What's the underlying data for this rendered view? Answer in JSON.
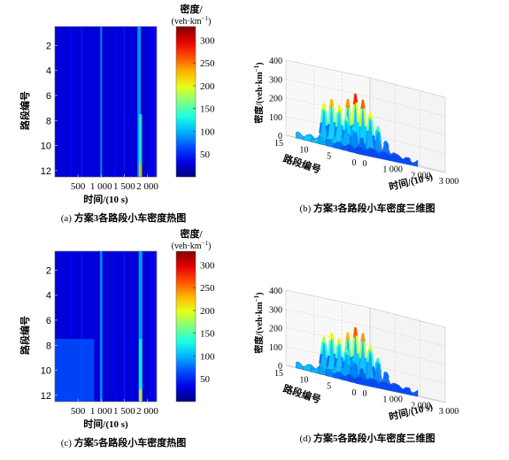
{
  "chart_data": [
    {
      "panel": "a",
      "type": "heatmap",
      "caption_prefix": "(a)",
      "caption": "方案3各路段小车密度热图",
      "xlabel": "时间/(10 s)",
      "ylabel": "路段编号",
      "x_ticks": [
        "500",
        "1 000",
        "1 500",
        "2 000"
      ],
      "x_tick_values": [
        500,
        1000,
        1500,
        2000
      ],
      "y_ticks": [
        "2",
        "4",
        "6",
        "8",
        "10",
        "12"
      ],
      "y_tick_values": [
        2,
        4,
        6,
        8,
        10,
        12
      ],
      "xlim": [
        0,
        2200
      ],
      "ylim": [
        0.5,
        12.5
      ],
      "colorbar": {
        "title": "密度/",
        "unit": "(veh·km",
        "unit_exp": "−1",
        "unit_close": ")",
        "ticks": [
          "300",
          "250",
          "200",
          "150",
          "100",
          "50"
        ],
        "tick_values": [
          300,
          250,
          200,
          150,
          100,
          50
        ],
        "range": [
          0,
          330
        ]
      },
      "bands": [
        {
          "x": 1000,
          "w": 40,
          "density": 85
        },
        {
          "x": 1820,
          "w": 70,
          "density": 95
        }
      ],
      "hot_cells": [
        {
          "x": 1850,
          "w": 70,
          "y_from": 7.5,
          "y_to": 11.5,
          "density": 140
        },
        {
          "x": 1850,
          "w": 70,
          "y_from": 11.5,
          "y_to": 12.5,
          "density": 220
        }
      ]
    },
    {
      "panel": "b",
      "type": "surface3d",
      "caption_prefix": "(b)",
      "caption": "方案3各路段小车密度三维图",
      "zlabel": "密度/(veh·km",
      "zlabel_exp": "−1",
      "zlabel_close": ")",
      "z_ticks": [
        "400",
        "300",
        "200",
        "100",
        "0"
      ],
      "z_tick_values": [
        400,
        300,
        200,
        100,
        0
      ],
      "ylabel": "路段编号",
      "y_ticks": [
        "15",
        "10",
        "5",
        "0"
      ],
      "y_tick_values": [
        15,
        10,
        5,
        0
      ],
      "xlabel": "时间/(10 s)",
      "x_ticks": [
        "0",
        "1 000",
        "2 000",
        "3 000"
      ],
      "x_tick_values": [
        0,
        1000,
        2000,
        3000
      ],
      "peaks": [
        {
          "x": 1000,
          "road": 11,
          "density": 220
        },
        {
          "x": 1850,
          "road": 11,
          "density": 280
        }
      ]
    },
    {
      "panel": "c",
      "type": "heatmap",
      "caption_prefix": "(c)",
      "caption": "方案5各路段小车密度热图",
      "xlabel": "时间/(10 s)",
      "ylabel": "路段编号",
      "x_ticks": [
        "500",
        "1 000",
        "1 500",
        "2 000"
      ],
      "x_tick_values": [
        500,
        1000,
        1500,
        2000
      ],
      "y_ticks": [
        "2",
        "4",
        "6",
        "8",
        "10",
        "12"
      ],
      "y_tick_values": [
        2,
        4,
        6,
        8,
        10,
        12
      ],
      "xlim": [
        0,
        2200
      ],
      "ylim": [
        0.5,
        12.5
      ],
      "colorbar": {
        "title": "密度/",
        "unit": "(veh·km",
        "unit_exp": "−1",
        "unit_close": ")",
        "ticks": [
          "300",
          "250",
          "200",
          "150",
          "100",
          "50"
        ],
        "tick_values": [
          300,
          250,
          200,
          150,
          100,
          50
        ],
        "range": [
          0,
          330
        ]
      },
      "bands": [
        {
          "x": 1000,
          "w": 50,
          "density": 90
        },
        {
          "x": 1850,
          "w": 80,
          "density": 95
        }
      ],
      "hot_cells": [
        {
          "x": 1850,
          "w": 70,
          "y_from": 7.5,
          "y_to": 11.5,
          "density": 130
        },
        {
          "x": 1850,
          "w": 70,
          "y_from": 11.5,
          "y_to": 12.5,
          "density": 210
        },
        {
          "x": 400,
          "w": 900,
          "y_from": 7.5,
          "y_to": 12.5,
          "density": 70
        }
      ]
    },
    {
      "panel": "d",
      "type": "surface3d",
      "caption_prefix": "(d)",
      "caption": "方案5各路段小车密度三维图",
      "zlabel": "密度/(veh·km",
      "zlabel_exp": "−1",
      "zlabel_close": ")",
      "z_ticks": [
        "400",
        "300",
        "200",
        "100",
        "0"
      ],
      "z_tick_values": [
        400,
        300,
        200,
        100,
        0
      ],
      "ylabel": "路段编号",
      "y_ticks": [
        "15",
        "10",
        "5",
        "0"
      ],
      "y_tick_values": [
        15,
        10,
        5,
        0
      ],
      "xlabel": "时间/(10 s)",
      "x_ticks": [
        "0",
        "1 000",
        "2 000",
        "3 000"
      ],
      "x_tick_values": [
        0,
        1000,
        2000,
        3000
      ],
      "peaks": [
        {
          "x": 1000,
          "road": 11,
          "density": 200
        },
        {
          "x": 1850,
          "road": 11,
          "density": 260
        }
      ]
    }
  ]
}
